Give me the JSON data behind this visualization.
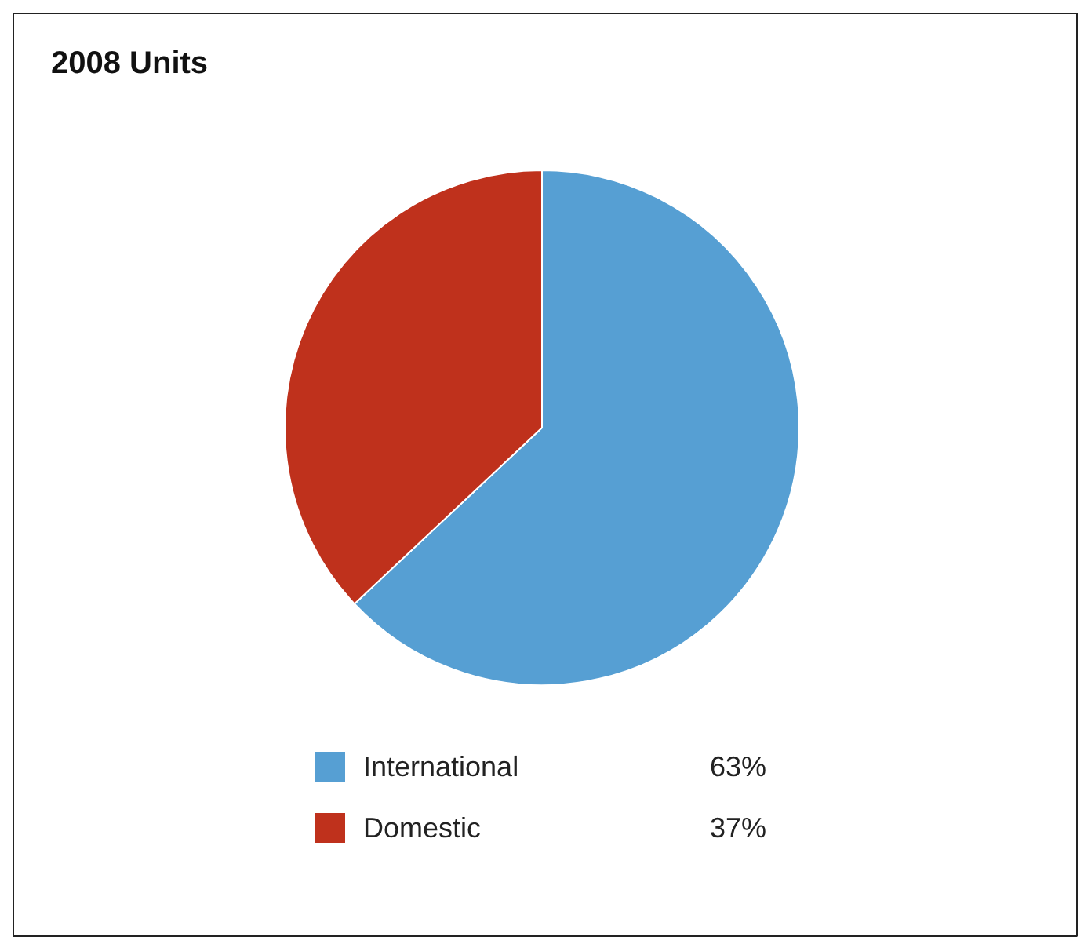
{
  "chart_data": {
    "type": "pie",
    "title": "2008 Units",
    "categories": [
      "International",
      "Domestic"
    ],
    "values": [
      63,
      37
    ],
    "colors": [
      "#569fd3",
      "#bf311c"
    ],
    "value_labels": [
      "63%",
      "37%"
    ],
    "legend": "bottom"
  }
}
